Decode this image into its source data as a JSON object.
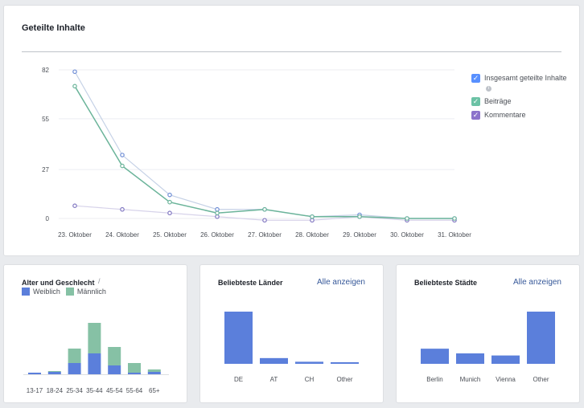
{
  "main": {
    "title": "Geteilte Inhalte",
    "legend": [
      {
        "label": "Insgesamt geteilte Inhalte",
        "color": "#5890ff",
        "checked": true,
        "info": true
      },
      {
        "label": "Beiträge",
        "color": "#6bc2a5",
        "checked": true,
        "info": false
      },
      {
        "label": "Kommentare",
        "color": "#8c72cb",
        "checked": true,
        "info": false
      }
    ],
    "chart_data": {
      "type": "line",
      "x": [
        "23. Oktober",
        "24. Oktober",
        "25. Oktober",
        "26. Oktober",
        "27. Oktober",
        "28. Oktober",
        "29. Oktober",
        "30. Oktober",
        "31. Oktober"
      ],
      "yticks": [
        0,
        27,
        55,
        82
      ],
      "ylim": [
        0,
        82
      ],
      "grid": true,
      "series": [
        {
          "name": "Insgesamt geteilte Inhalte",
          "color": "#c5d1e6",
          "marker": "#6f8ed6",
          "values": [
            81,
            35,
            13,
            5,
            5,
            1,
            2,
            0,
            0
          ]
        },
        {
          "name": "Beiträge",
          "color": "#6bb49a",
          "marker": "#6bb49a",
          "values": [
            73,
            29,
            9,
            3,
            5,
            1,
            1,
            0,
            0
          ]
        },
        {
          "name": "Kommentare",
          "color": "#d7d3ea",
          "marker": "#8278c2",
          "values": [
            7,
            5,
            3,
            1,
            -1,
            -1,
            1,
            -1,
            -1
          ]
        }
      ]
    }
  },
  "age": {
    "title": "Alter und Geschlecht",
    "legend": [
      {
        "label": "Weiblich",
        "color": "#5b7fdb"
      },
      {
        "label": "Männlich",
        "color": "#86c1a5"
      }
    ],
    "chart_data": {
      "type": "bar",
      "stacked": true,
      "categories": [
        "13-17",
        "18-24",
        "25-34",
        "35-44",
        "45-54",
        "55-64",
        "65+"
      ],
      "series": [
        {
          "name": "Weiblich",
          "values": [
            2,
            3,
            14,
            26,
            11,
            2,
            3
          ]
        },
        {
          "name": "Männlich",
          "values": [
            0,
            1,
            18,
            38,
            23,
            12,
            3
          ]
        }
      ]
    }
  },
  "countries": {
    "title": "Beliebteste Länder",
    "see_all": "Alle anzeigen",
    "chart_data": {
      "type": "bar",
      "categories": [
        "DE",
        "AT",
        "CH",
        "Other"
      ],
      "values": [
        100,
        11,
        4,
        3
      ],
      "color": "#5b7fdb"
    }
  },
  "cities": {
    "title": "Beliebteste Städte",
    "see_all": "Alle anzeigen",
    "chart_data": {
      "type": "bar",
      "categories": [
        "Berlin",
        "Munich",
        "Vienna",
        "Other"
      ],
      "values": [
        29,
        20,
        16,
        100
      ],
      "color": "#5b7fdb"
    }
  }
}
